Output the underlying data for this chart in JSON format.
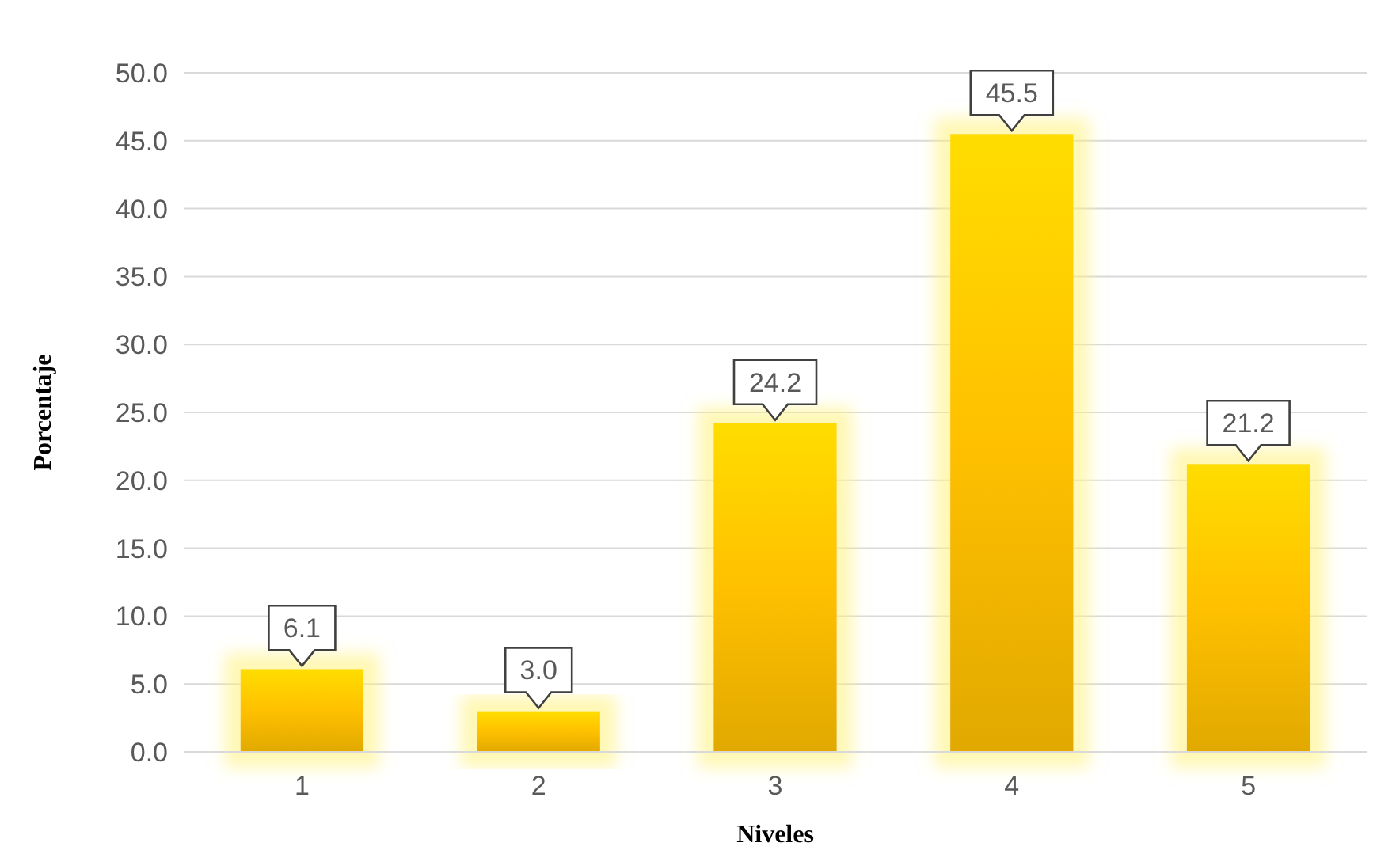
{
  "chart_data": {
    "type": "bar",
    "xlabel": "Niveles",
    "ylabel": "Porcentaje",
    "categories": [
      "1",
      "2",
      "3",
      "4",
      "5"
    ],
    "values": [
      6.1,
      3.0,
      24.2,
      45.5,
      21.2
    ],
    "value_labels": [
      "6.1",
      "3.0",
      "24.2",
      "45.5",
      "21.2"
    ],
    "color": "#ffc000",
    "ylim": [
      0,
      50
    ],
    "yticks": [
      {
        "value": 0,
        "label": "0.0"
      },
      {
        "value": 5,
        "label": "5.0"
      },
      {
        "value": 10,
        "label": "10.0"
      },
      {
        "value": 15,
        "label": "15.0"
      },
      {
        "value": 20,
        "label": "20.0"
      },
      {
        "value": 25,
        "label": "25.0"
      },
      {
        "value": 30,
        "label": "30.0"
      },
      {
        "value": 35,
        "label": "35.0"
      },
      {
        "value": 40,
        "label": "40.0"
      },
      {
        "value": 45,
        "label": "45.0"
      },
      {
        "value": 50,
        "label": "50.0"
      }
    ],
    "grid": "y"
  }
}
